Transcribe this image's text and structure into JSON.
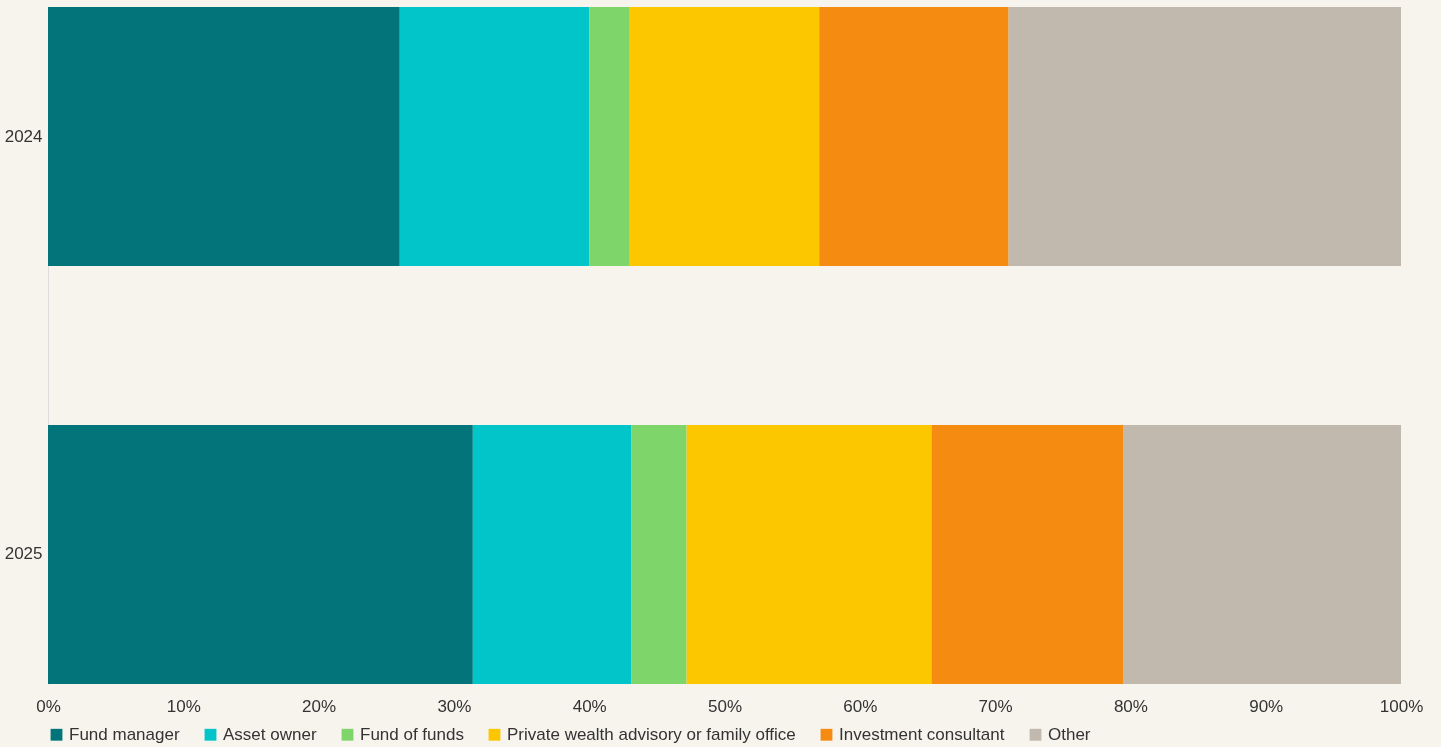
{
  "chart_data": {
    "type": "bar",
    "orientation": "horizontal",
    "stacked": true,
    "categories": [
      "2024",
      "2025"
    ],
    "series": [
      {
        "name": "Fund manager",
        "color": "#02747a",
        "values": [
          26,
          31.4
        ]
      },
      {
        "name": "Asset owner",
        "color": "#02c5c9",
        "values": [
          14,
          11.7
        ]
      },
      {
        "name": "Fund of funds",
        "color": "#7ed66b",
        "values": [
          3,
          4.1
        ]
      },
      {
        "name": "Private wealth advisory or family office",
        "color": "#fdc700",
        "values": [
          14,
          18.1
        ]
      },
      {
        "name": "Investment consultant",
        "color": "#f68b12",
        "values": [
          14,
          14.2
        ]
      },
      {
        "name": "Other",
        "color": "#c1b9ae",
        "values": [
          29,
          20.5
        ]
      }
    ],
    "xlim": [
      0,
      100
    ],
    "xticks": [
      {
        "value": 0,
        "label": "0%"
      },
      {
        "value": 10,
        "label": "10%"
      },
      {
        "value": 20,
        "label": "20%"
      },
      {
        "value": 30,
        "label": "30%"
      },
      {
        "value": 40,
        "label": "40%"
      },
      {
        "value": 50,
        "label": "50%"
      },
      {
        "value": 60,
        "label": "60%"
      },
      {
        "value": 70,
        "label": "70%"
      },
      {
        "value": 80,
        "label": "80%"
      },
      {
        "value": 90,
        "label": "90%"
      },
      {
        "value": 100,
        "label": "100%"
      }
    ],
    "grid": false,
    "legend": "bottom"
  }
}
